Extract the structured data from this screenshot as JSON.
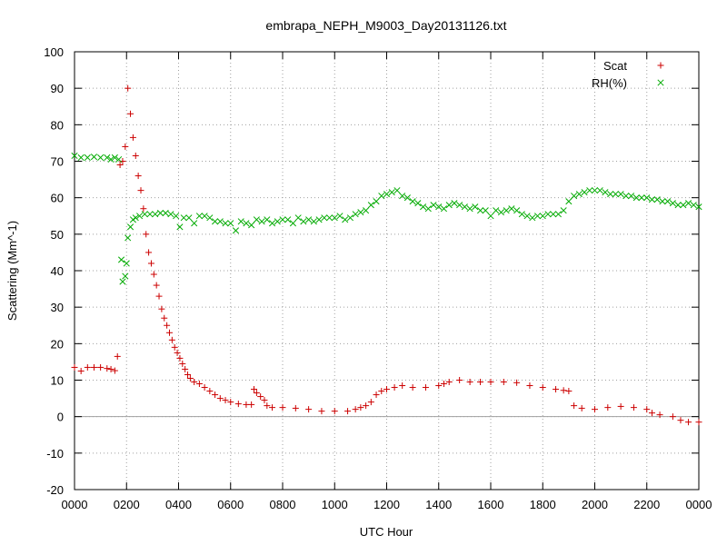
{
  "chart_data": {
    "type": "scatter",
    "title": "embrapa_NEPH_M9003_Day20131126.txt",
    "xlabel": "UTC Hour",
    "ylabel": "Scattering (Mm^-1)",
    "xlim": [
      0,
      2400
    ],
    "ylim": [
      -20,
      100
    ],
    "grid": true,
    "legend_position": "top-right",
    "x_ticks": [
      "0000",
      "0200",
      "0400",
      "0600",
      "0800",
      "1000",
      "1200",
      "1400",
      "1600",
      "1800",
      "2000",
      "2200",
      "0000"
    ],
    "y_ticks": [
      "100",
      "90",
      "80",
      "70",
      "60",
      "50",
      "40",
      "30",
      "20",
      "10",
      "0",
      "-10",
      "-20"
    ],
    "series": [
      {
        "name": "Scat",
        "marker": "+",
        "color": "#cc0000",
        "points": [
          [
            0,
            13.5
          ],
          [
            25,
            12.5
          ],
          [
            50,
            13.5
          ],
          [
            75,
            13.5
          ],
          [
            100,
            13.5
          ],
          [
            125,
            13.2
          ],
          [
            140,
            13.0
          ],
          [
            155,
            12.6
          ],
          [
            165,
            16.5
          ],
          [
            175,
            69
          ],
          [
            185,
            70
          ],
          [
            195,
            74
          ],
          [
            205,
            90
          ],
          [
            215,
            83
          ],
          [
            225,
            76.5
          ],
          [
            235,
            71.5
          ],
          [
            245,
            66
          ],
          [
            255,
            62
          ],
          [
            265,
            57
          ],
          [
            275,
            50
          ],
          [
            285,
            45
          ],
          [
            295,
            42
          ],
          [
            305,
            39
          ],
          [
            315,
            36
          ],
          [
            325,
            33
          ],
          [
            335,
            29.5
          ],
          [
            345,
            27
          ],
          [
            355,
            25
          ],
          [
            365,
            23
          ],
          [
            375,
            21
          ],
          [
            385,
            19
          ],
          [
            395,
            17.5
          ],
          [
            405,
            16
          ],
          [
            415,
            14.5
          ],
          [
            425,
            13
          ],
          [
            435,
            11.5
          ],
          [
            445,
            10.5
          ],
          [
            460,
            9.5
          ],
          [
            480,
            9
          ],
          [
            500,
            8
          ],
          [
            520,
            7
          ],
          [
            540,
            6
          ],
          [
            560,
            5
          ],
          [
            580,
            4.5
          ],
          [
            600,
            4
          ],
          [
            630,
            3.5
          ],
          [
            660,
            3.3
          ],
          [
            680,
            3.3
          ],
          [
            690,
            7.5
          ],
          [
            700,
            6.5
          ],
          [
            715,
            5.5
          ],
          [
            730,
            4.5
          ],
          [
            740,
            3
          ],
          [
            760,
            2.5
          ],
          [
            800,
            2.5
          ],
          [
            850,
            2.3
          ],
          [
            900,
            2
          ],
          [
            950,
            1.5
          ],
          [
            1000,
            1.5
          ],
          [
            1050,
            1.5
          ],
          [
            1080,
            2
          ],
          [
            1100,
            2.5
          ],
          [
            1120,
            3
          ],
          [
            1140,
            4
          ],
          [
            1160,
            6
          ],
          [
            1180,
            7
          ],
          [
            1200,
            7.5
          ],
          [
            1230,
            8
          ],
          [
            1260,
            8.5
          ],
          [
            1300,
            8
          ],
          [
            1350,
            8
          ],
          [
            1400,
            8.5
          ],
          [
            1420,
            9
          ],
          [
            1440,
            9.5
          ],
          [
            1480,
            10
          ],
          [
            1520,
            9.5
          ],
          [
            1560,
            9.5
          ],
          [
            1600,
            9.5
          ],
          [
            1650,
            9.5
          ],
          [
            1700,
            9.3
          ],
          [
            1750,
            8.5
          ],
          [
            1800,
            8
          ],
          [
            1850,
            7.5
          ],
          [
            1880,
            7.2
          ],
          [
            1900,
            7
          ],
          [
            1920,
            3
          ],
          [
            1950,
            2.3
          ],
          [
            2000,
            2
          ],
          [
            2050,
            2.5
          ],
          [
            2100,
            2.8
          ],
          [
            2150,
            2.5
          ],
          [
            2200,
            2
          ],
          [
            2220,
            1
          ],
          [
            2250,
            0.5
          ],
          [
            2300,
            0
          ],
          [
            2330,
            -1
          ],
          [
            2360,
            -1.5
          ],
          [
            2400,
            -1.5
          ]
        ]
      },
      {
        "name": "RH(%)",
        "marker": "x",
        "color": "#00aa00",
        "points": [
          [
            0,
            71.5
          ],
          [
            25,
            71
          ],
          [
            50,
            71
          ],
          [
            75,
            71.2
          ],
          [
            100,
            71
          ],
          [
            125,
            71
          ],
          [
            140,
            70.5
          ],
          [
            155,
            71
          ],
          [
            170,
            70.5
          ],
          [
            180,
            43
          ],
          [
            185,
            37
          ],
          [
            195,
            38.5
          ],
          [
            200,
            42
          ],
          [
            205,
            49
          ],
          [
            215,
            52
          ],
          [
            225,
            54
          ],
          [
            235,
            54.5
          ],
          [
            250,
            55
          ],
          [
            270,
            55.5
          ],
          [
            290,
            55.5
          ],
          [
            310,
            55.5
          ],
          [
            330,
            55.8
          ],
          [
            350,
            55.8
          ],
          [
            370,
            55.5
          ],
          [
            390,
            55
          ],
          [
            405,
            52
          ],
          [
            420,
            54.5
          ],
          [
            440,
            54.5
          ],
          [
            460,
            53
          ],
          [
            480,
            55
          ],
          [
            500,
            55
          ],
          [
            520,
            54.5
          ],
          [
            540,
            53.5
          ],
          [
            560,
            53.5
          ],
          [
            580,
            53
          ],
          [
            600,
            53
          ],
          [
            620,
            51
          ],
          [
            640,
            53.5
          ],
          [
            660,
            53
          ],
          [
            680,
            52.5
          ],
          [
            700,
            54
          ],
          [
            720,
            53.5
          ],
          [
            740,
            54
          ],
          [
            760,
            53
          ],
          [
            780,
            53.5
          ],
          [
            800,
            54
          ],
          [
            820,
            54
          ],
          [
            840,
            53
          ],
          [
            860,
            54.5
          ],
          [
            880,
            53.5
          ],
          [
            900,
            54
          ],
          [
            920,
            53.5
          ],
          [
            940,
            54
          ],
          [
            960,
            54.5
          ],
          [
            980,
            54.5
          ],
          [
            1000,
            54.5
          ],
          [
            1020,
            55
          ],
          [
            1040,
            54
          ],
          [
            1060,
            54.5
          ],
          [
            1080,
            55.5
          ],
          [
            1100,
            56
          ],
          [
            1120,
            56.5
          ],
          [
            1140,
            58
          ],
          [
            1160,
            59
          ],
          [
            1180,
            60.5
          ],
          [
            1200,
            61
          ],
          [
            1220,
            61.5
          ],
          [
            1240,
            62
          ],
          [
            1260,
            60.5
          ],
          [
            1280,
            60
          ],
          [
            1300,
            59
          ],
          [
            1320,
            58.5
          ],
          [
            1340,
            57.5
          ],
          [
            1360,
            57
          ],
          [
            1380,
            58
          ],
          [
            1400,
            57.5
          ],
          [
            1420,
            57
          ],
          [
            1440,
            58
          ],
          [
            1460,
            58.5
          ],
          [
            1480,
            58
          ],
          [
            1500,
            57.5
          ],
          [
            1520,
            57
          ],
          [
            1540,
            57.5
          ],
          [
            1560,
            56.5
          ],
          [
            1580,
            56.5
          ],
          [
            1600,
            55
          ],
          [
            1620,
            56.5
          ],
          [
            1640,
            56
          ],
          [
            1660,
            56.5
          ],
          [
            1680,
            57
          ],
          [
            1700,
            56.5
          ],
          [
            1720,
            55.5
          ],
          [
            1740,
            55
          ],
          [
            1760,
            54.5
          ],
          [
            1780,
            55
          ],
          [
            1800,
            55
          ],
          [
            1820,
            55.5
          ],
          [
            1840,
            55.5
          ],
          [
            1860,
            55.5
          ],
          [
            1880,
            56.5
          ],
          [
            1900,
            59
          ],
          [
            1920,
            60.5
          ],
          [
            1940,
            61
          ],
          [
            1960,
            61.5
          ],
          [
            1980,
            62
          ],
          [
            2000,
            62
          ],
          [
            2020,
            62
          ],
          [
            2040,
            61.5
          ],
          [
            2060,
            61
          ],
          [
            2080,
            61
          ],
          [
            2100,
            61
          ],
          [
            2120,
            60.5
          ],
          [
            2140,
            60.5
          ],
          [
            2160,
            60
          ],
          [
            2180,
            60
          ],
          [
            2200,
            60
          ],
          [
            2220,
            59.5
          ],
          [
            2240,
            59.5
          ],
          [
            2260,
            59
          ],
          [
            2280,
            59
          ],
          [
            2300,
            58.5
          ],
          [
            2320,
            58
          ],
          [
            2340,
            58
          ],
          [
            2360,
            58.5
          ],
          [
            2380,
            58
          ],
          [
            2400,
            57.5
          ]
        ]
      }
    ]
  }
}
